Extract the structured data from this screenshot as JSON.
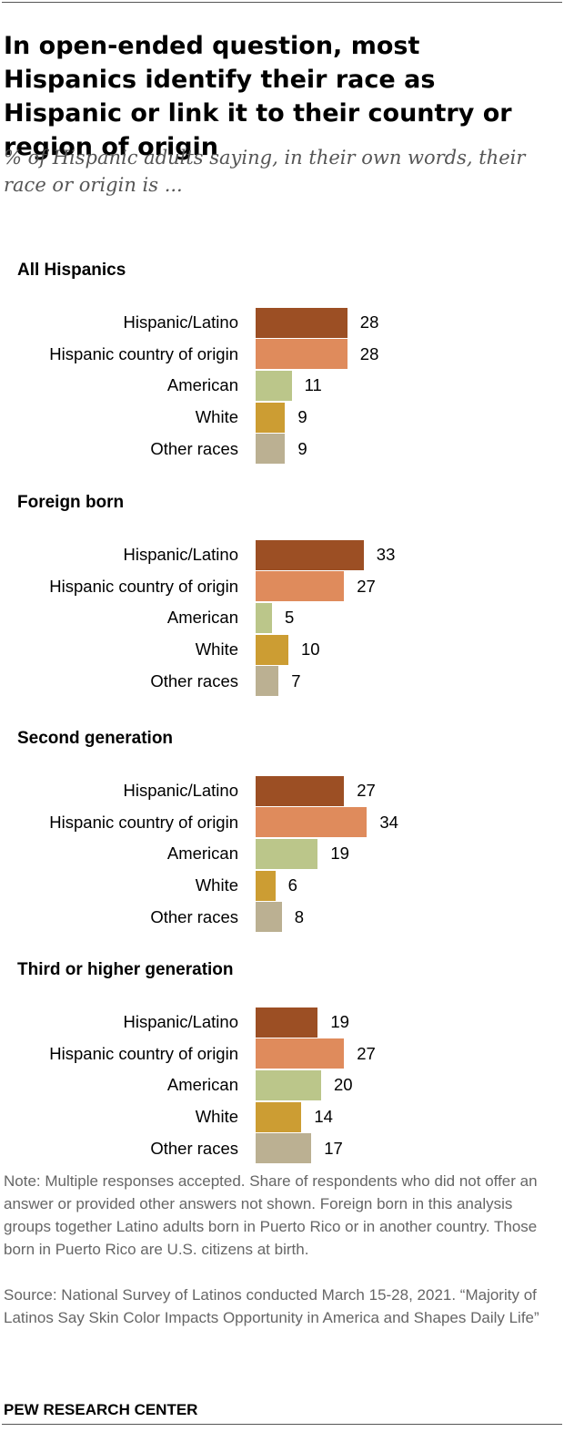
{
  "title": "In open-ended question, most Hispanics identify their race as Hispanic or link it to their country or region of origin",
  "subtitle": "% of Hispanic adults saying, in their own words, their race or origin is ...",
  "chart_data": {
    "type": "bar",
    "orientation": "horizontal",
    "categories": [
      "Hispanic/Latino",
      "Hispanic country of origin",
      "American",
      "White",
      "Other races"
    ],
    "colors": [
      "#9c4f24",
      "#df8b5c",
      "#bbc68a",
      "#cc9d33",
      "#bbb092"
    ],
    "panels": [
      {
        "title": "All Hispanics",
        "values": [
          28,
          28,
          11,
          9,
          9
        ]
      },
      {
        "title": "Foreign born",
        "values": [
          33,
          27,
          5,
          10,
          7
        ]
      },
      {
        "title": "Second generation",
        "values": [
          27,
          34,
          19,
          6,
          8
        ]
      },
      {
        "title": "Third or higher generation",
        "values": [
          19,
          27,
          20,
          14,
          17
        ]
      }
    ]
  },
  "note": "Note: Multiple responses accepted. Share of respondents who did not offer an answer or provided other answers not shown. Foreign born in this analysis groups together Latino adults born in Puerto Rico or in another country. Those born in Puerto Rico are U.S. citizens at birth.",
  "source": "Source: National Survey of Latinos conducted March 15-28, 2021. “Majority of Latinos Say Skin Color Impacts Opportunity in America and Shapes Daily Life”",
  "logo": "PEW RESEARCH CENTER"
}
